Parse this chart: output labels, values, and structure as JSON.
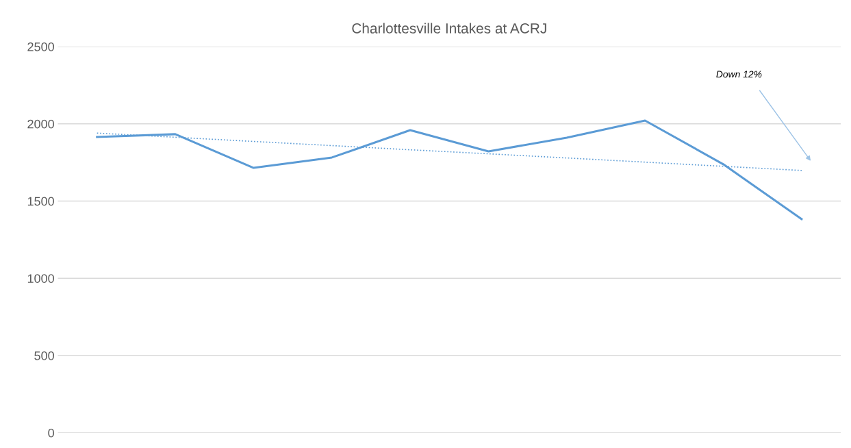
{
  "chart_data": {
    "type": "line",
    "title": "Charlottesville Intakes at ACRJ",
    "categories": [
      null,
      null,
      null,
      null,
      null,
      null,
      null,
      null,
      null,
      null
    ],
    "series": [
      {
        "color": "#5b9bd5",
        "values": [
          1915,
          1933,
          1715,
          1782,
          1959,
          1822,
          1910,
          2021,
          1738,
          1383
        ],
        "line_style": "solid"
      },
      {
        "color": "#5b9bd5",
        "values": [
          1940,
          1913,
          1886,
          1859,
          1832,
          1806,
          1779,
          1752,
          1725,
          1698
        ],
        "line_style": "dotted"
      }
    ],
    "ylim": [
      0,
      2500
    ],
    "yticks": [
      0,
      500,
      1000,
      1500,
      2000,
      2500
    ],
    "grid": "y",
    "legend": false,
    "annotations": [
      "Down 12%"
    ]
  }
}
